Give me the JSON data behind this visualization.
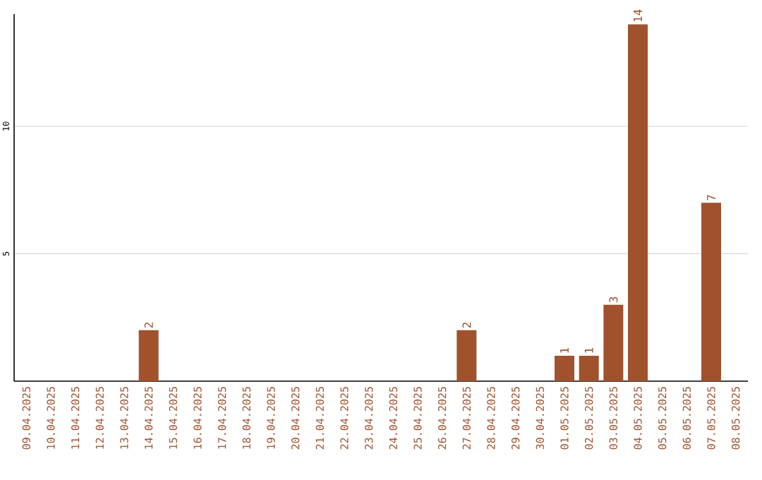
{
  "chart_data": {
    "type": "bar",
    "categories": [
      "09.04.2025",
      "10.04.2025",
      "11.04.2025",
      "12.04.2025",
      "13.04.2025",
      "14.04.2025",
      "15.04.2025",
      "16.04.2025",
      "17.04.2025",
      "18.04.2025",
      "19.04.2025",
      "20.04.2025",
      "21.04.2025",
      "22.04.2025",
      "23.04.2025",
      "24.04.2025",
      "25.04.2025",
      "26.04.2025",
      "27.04.2025",
      "28.04.2025",
      "29.04.2025",
      "30.04.2025",
      "01.05.2025",
      "02.05.2025",
      "03.05.2025",
      "04.05.2025",
      "05.05.2025",
      "06.05.2025",
      "07.05.2025",
      "08.05.2025"
    ],
    "values": [
      0,
      0,
      0,
      0,
      0,
      2,
      0,
      0,
      0,
      0,
      0,
      0,
      0,
      0,
      0,
      0,
      0,
      0,
      2,
      0,
      0,
      0,
      1,
      1,
      3,
      14,
      0,
      0,
      7,
      0
    ],
    "value_labels": [
      null,
      null,
      null,
      null,
      null,
      "2",
      null,
      null,
      null,
      null,
      null,
      null,
      null,
      null,
      null,
      null,
      null,
      null,
      "2",
      null,
      null,
      null,
      "1",
      "1",
      "3",
      "14",
      null,
      null,
      "7",
      null
    ],
    "color": "#a0522d",
    "ylim": [
      0,
      14.4
    ],
    "yticks": [
      5,
      10
    ],
    "grid": "y"
  }
}
